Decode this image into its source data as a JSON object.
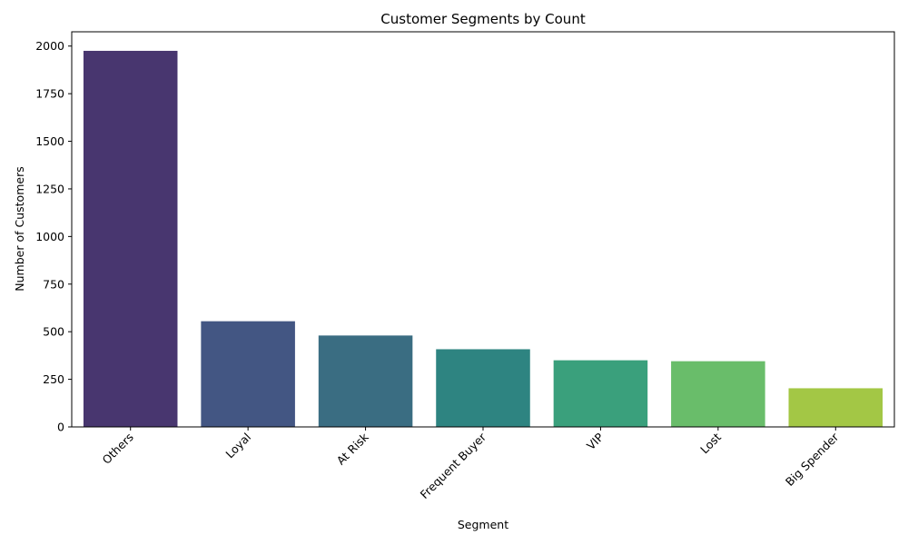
{
  "chart_data": {
    "type": "bar",
    "title": "Customer Segments by Count",
    "xlabel": "Segment",
    "ylabel": "Number of Customers",
    "categories": [
      "Others",
      "Loyal",
      "At Risk",
      "Frequent Buyer",
      "VIP",
      "Lost",
      "Big Spender"
    ],
    "values": [
      1975,
      555,
      480,
      408,
      350,
      345,
      203
    ],
    "colors": [
      "#48366f",
      "#435683",
      "#3a6d82",
      "#2e8481",
      "#3aa07c",
      "#69bd6a",
      "#a3c745"
    ],
    "ylim": [
      0,
      2075
    ],
    "yticks": [
      0,
      250,
      500,
      750,
      1000,
      1250,
      1500,
      1750,
      2000
    ],
    "grid": false,
    "legend": "none"
  }
}
